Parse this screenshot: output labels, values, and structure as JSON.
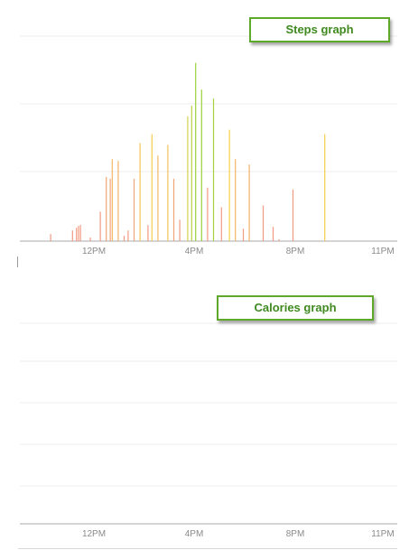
{
  "chart_data": [
    {
      "type": "bar",
      "title": "Steps graph",
      "x_ticks": [
        "12PM",
        "4PM",
        "8PM",
        "11PM"
      ],
      "grid": true,
      "color_scale": {
        "low": "#f39a82",
        "mid": "#f5d24b",
        "high": "#9bd33c"
      },
      "values": [
        0,
        0,
        0,
        0,
        0,
        0,
        0,
        0,
        0,
        0,
        0,
        0,
        0,
        0,
        0,
        8,
        0,
        0,
        0,
        0,
        0,
        0,
        0,
        0,
        0,
        0,
        12,
        0,
        15,
        17,
        18,
        0,
        0,
        0,
        0,
        4,
        0,
        0,
        0,
        0,
        33,
        0,
        0,
        72,
        0,
        70,
        92,
        0,
        0,
        90,
        0,
        0,
        6,
        0,
        12,
        0,
        0,
        70,
        0,
        0,
        110,
        0,
        0,
        0,
        18,
        0,
        120,
        0,
        0,
        96,
        0,
        0,
        0,
        0,
        108,
        0,
        0,
        70,
        0,
        0,
        24,
        0,
        0,
        0,
        140,
        0,
        152,
        0,
        200,
        0,
        0,
        170,
        0,
        0,
        60,
        0,
        0,
        160,
        0,
        0,
        0,
        38,
        0,
        0,
        0,
        125,
        0,
        0,
        92,
        0,
        0,
        0,
        14,
        0,
        0,
        86,
        0,
        0,
        0,
        0,
        0,
        0,
        40,
        0,
        0,
        0,
        0,
        16,
        0,
        0,
        2,
        0,
        0,
        0,
        0,
        0,
        0,
        58,
        0,
        0,
        0,
        0,
        0,
        0,
        0,
        0,
        0,
        0,
        0,
        0,
        0,
        0,
        0,
        120,
        0,
        0,
        0,
        0,
        0,
        0,
        0,
        0,
        0,
        0,
        0,
        0,
        0,
        0,
        0,
        0,
        0,
        0,
        0,
        0,
        0,
        0,
        0,
        0,
        0,
        0,
        0,
        0,
        0,
        0,
        0,
        0,
        0,
        0,
        0,
        0
      ],
      "ylim": [
        0,
        230
      ]
    },
    {
      "type": "bar",
      "title": "Calories graph",
      "x_ticks": [
        "12PM",
        "4PM",
        "8PM",
        "11PM"
      ],
      "grid": true,
      "color_scale": {
        "low": "#f39a82",
        "mid": "#f5d24b",
        "high": "#9bd33c"
      },
      "values": [],
      "ylim": [
        0,
        230
      ]
    }
  ],
  "steps_label": "Steps graph",
  "calories_label": "Calories graph"
}
